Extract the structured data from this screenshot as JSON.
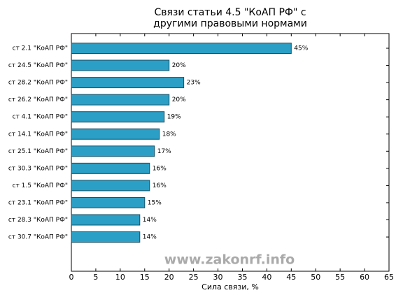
{
  "chart_data": {
    "type": "barh",
    "title": [
      "Связи статьи 4.5 \"КоАП РФ\" с",
      "другими правовыми нормами"
    ],
    "xlabel": "Сила связи, %",
    "watermark": "www.zakonrf.info",
    "categories": [
      "ст 2.1 \"КоАП РФ\"",
      "ст 24.5 \"КоАП РФ\"",
      "ст 28.2 \"КоАП РФ\"",
      "ст 26.2 \"КоАП РФ\"",
      "ст 4.1 \"КоАП РФ\"",
      "ст 14.1 \"КоАП РФ\"",
      "ст 25.1 \"КоАП РФ\"",
      "ст 30.3 \"КоАП РФ\"",
      "ст 1.5 \"КоАП РФ\"",
      "ст 23.1 \"КоАП РФ\"",
      "ст 28.3 \"КоАП РФ\"",
      "ст 30.7 \"КоАП РФ\""
    ],
    "values": [
      45,
      20,
      23,
      20,
      19,
      18,
      17,
      16,
      16,
      15,
      14,
      14
    ],
    "value_labels": [
      "45%",
      "20%",
      "23%",
      "20%",
      "19%",
      "18%",
      "17%",
      "16%",
      "16%",
      "15%",
      "14%",
      "14%"
    ],
    "color": "#2b9fc6",
    "xlim": [
      0,
      65
    ],
    "xticks": [
      0,
      5,
      10,
      15,
      20,
      25,
      30,
      35,
      40,
      45,
      50,
      55,
      60,
      65
    ]
  }
}
